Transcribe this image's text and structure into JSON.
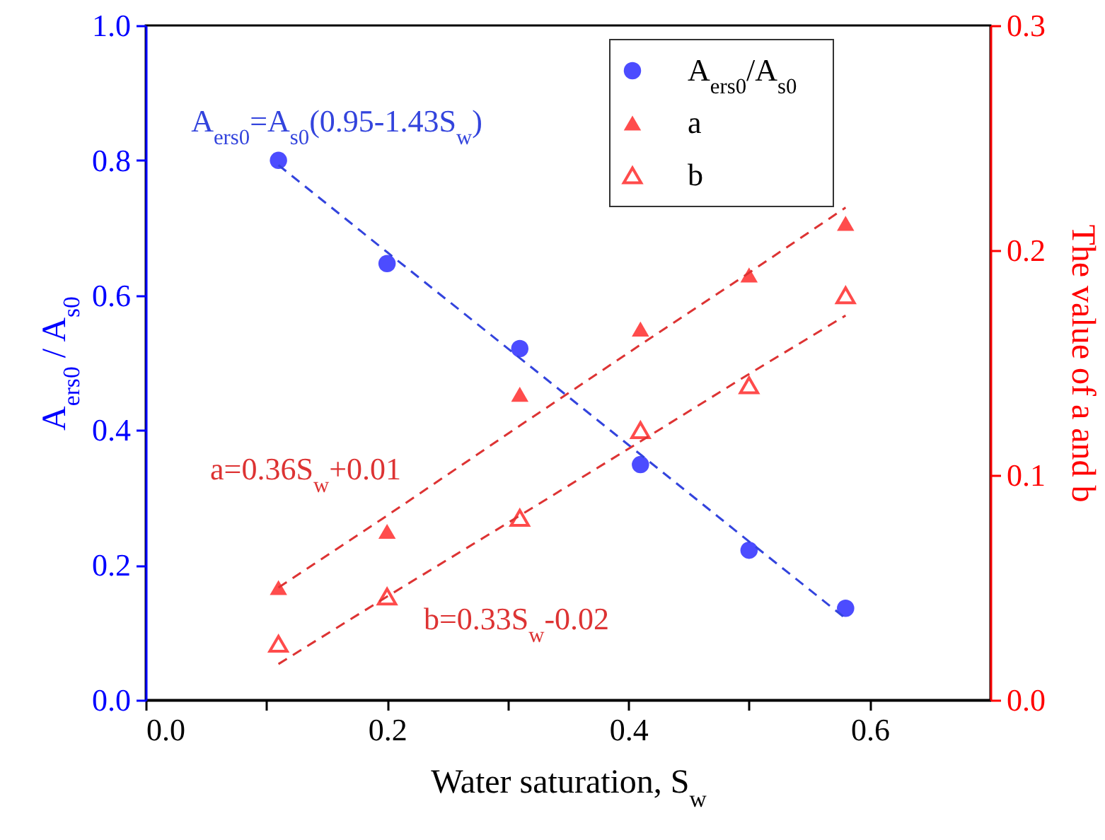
{
  "chart_data": {
    "type": "scatter",
    "xlabel": "Water saturation, S$_{w}$",
    "ylabel": "A$_{ers0}$ / A$_{s0}$",
    "y2label": "The value of a and b",
    "x": [
      0.11,
      0.2,
      0.31,
      0.41,
      0.5,
      0.58
    ],
    "series": [
      {
        "name": "A$_{ers0}$/A$_{s0}$",
        "color": "#0000ff",
        "marker": "circle",
        "axis": "y",
        "values": [
          0.8,
          0.647,
          0.521,
          0.349,
          0.222,
          0.136
        ]
      },
      {
        "name": "a",
        "color": "#ff0000",
        "marker": "triangle",
        "axis": "y2",
        "values": [
          0.05,
          0.075,
          0.136,
          0.165,
          0.189,
          0.212
        ]
      },
      {
        "name": "b",
        "color": "#ff0000",
        "marker": "triangle-open",
        "axis": "y2",
        "values": [
          0.025,
          0.046,
          0.081,
          0.12,
          0.14,
          0.18
        ]
      },
      {
        "type": "line",
        "color": "#3344dd",
        "line_style": "dashed",
        "marker": "none",
        "axis": "y",
        "values": [
          0.793,
          0.664,
          0.507,
          0.364,
          0.235,
          0.121
        ]
      },
      {
        "type": "line",
        "color": "#dd3333",
        "line_style": "dashed",
        "marker": "none",
        "axis": "y2",
        "values": [
          0.05,
          0.082,
          0.122,
          0.158,
          0.19,
          0.219
        ]
      },
      {
        "type": "line",
        "color": "#dd3333",
        "line_style": "dashed",
        "marker": "none",
        "axis": "y2",
        "values": [
          0.016,
          0.046,
          0.082,
          0.115,
          0.145,
          0.171
        ]
      }
    ],
    "annotations": [
      "A$_{ers0}$=A$_{s0}$(0.95-1.43S$_{w}$)",
      "a=0.36S$_{w}$+0.01",
      "b=0.33S$_{w}$-0.02"
    ],
    "xlim": [
      0,
      0.7
    ],
    "xticks": [
      {
        "value": 0,
        "label": "0.0"
      },
      {
        "value": 0.1,
        "label": null
      },
      0.2,
      {
        "value": 0.3,
        "label": null
      },
      0.4,
      {
        "value": 0.5,
        "label": null
      },
      0.6
    ],
    "ylim": [
      0,
      1
    ],
    "yticks": [
      {
        "value": 0,
        "label": "0.0"
      },
      0.2,
      0.4,
      0.6,
      0.8,
      {
        "value": 1,
        "label": "1.0"
      }
    ],
    "y2lim": [
      0,
      0.3
    ],
    "y2ticks": [
      {
        "value": 0,
        "label": "0.0"
      },
      0.1,
      0.2,
      0.3
    ],
    "legend": "top right"
  }
}
